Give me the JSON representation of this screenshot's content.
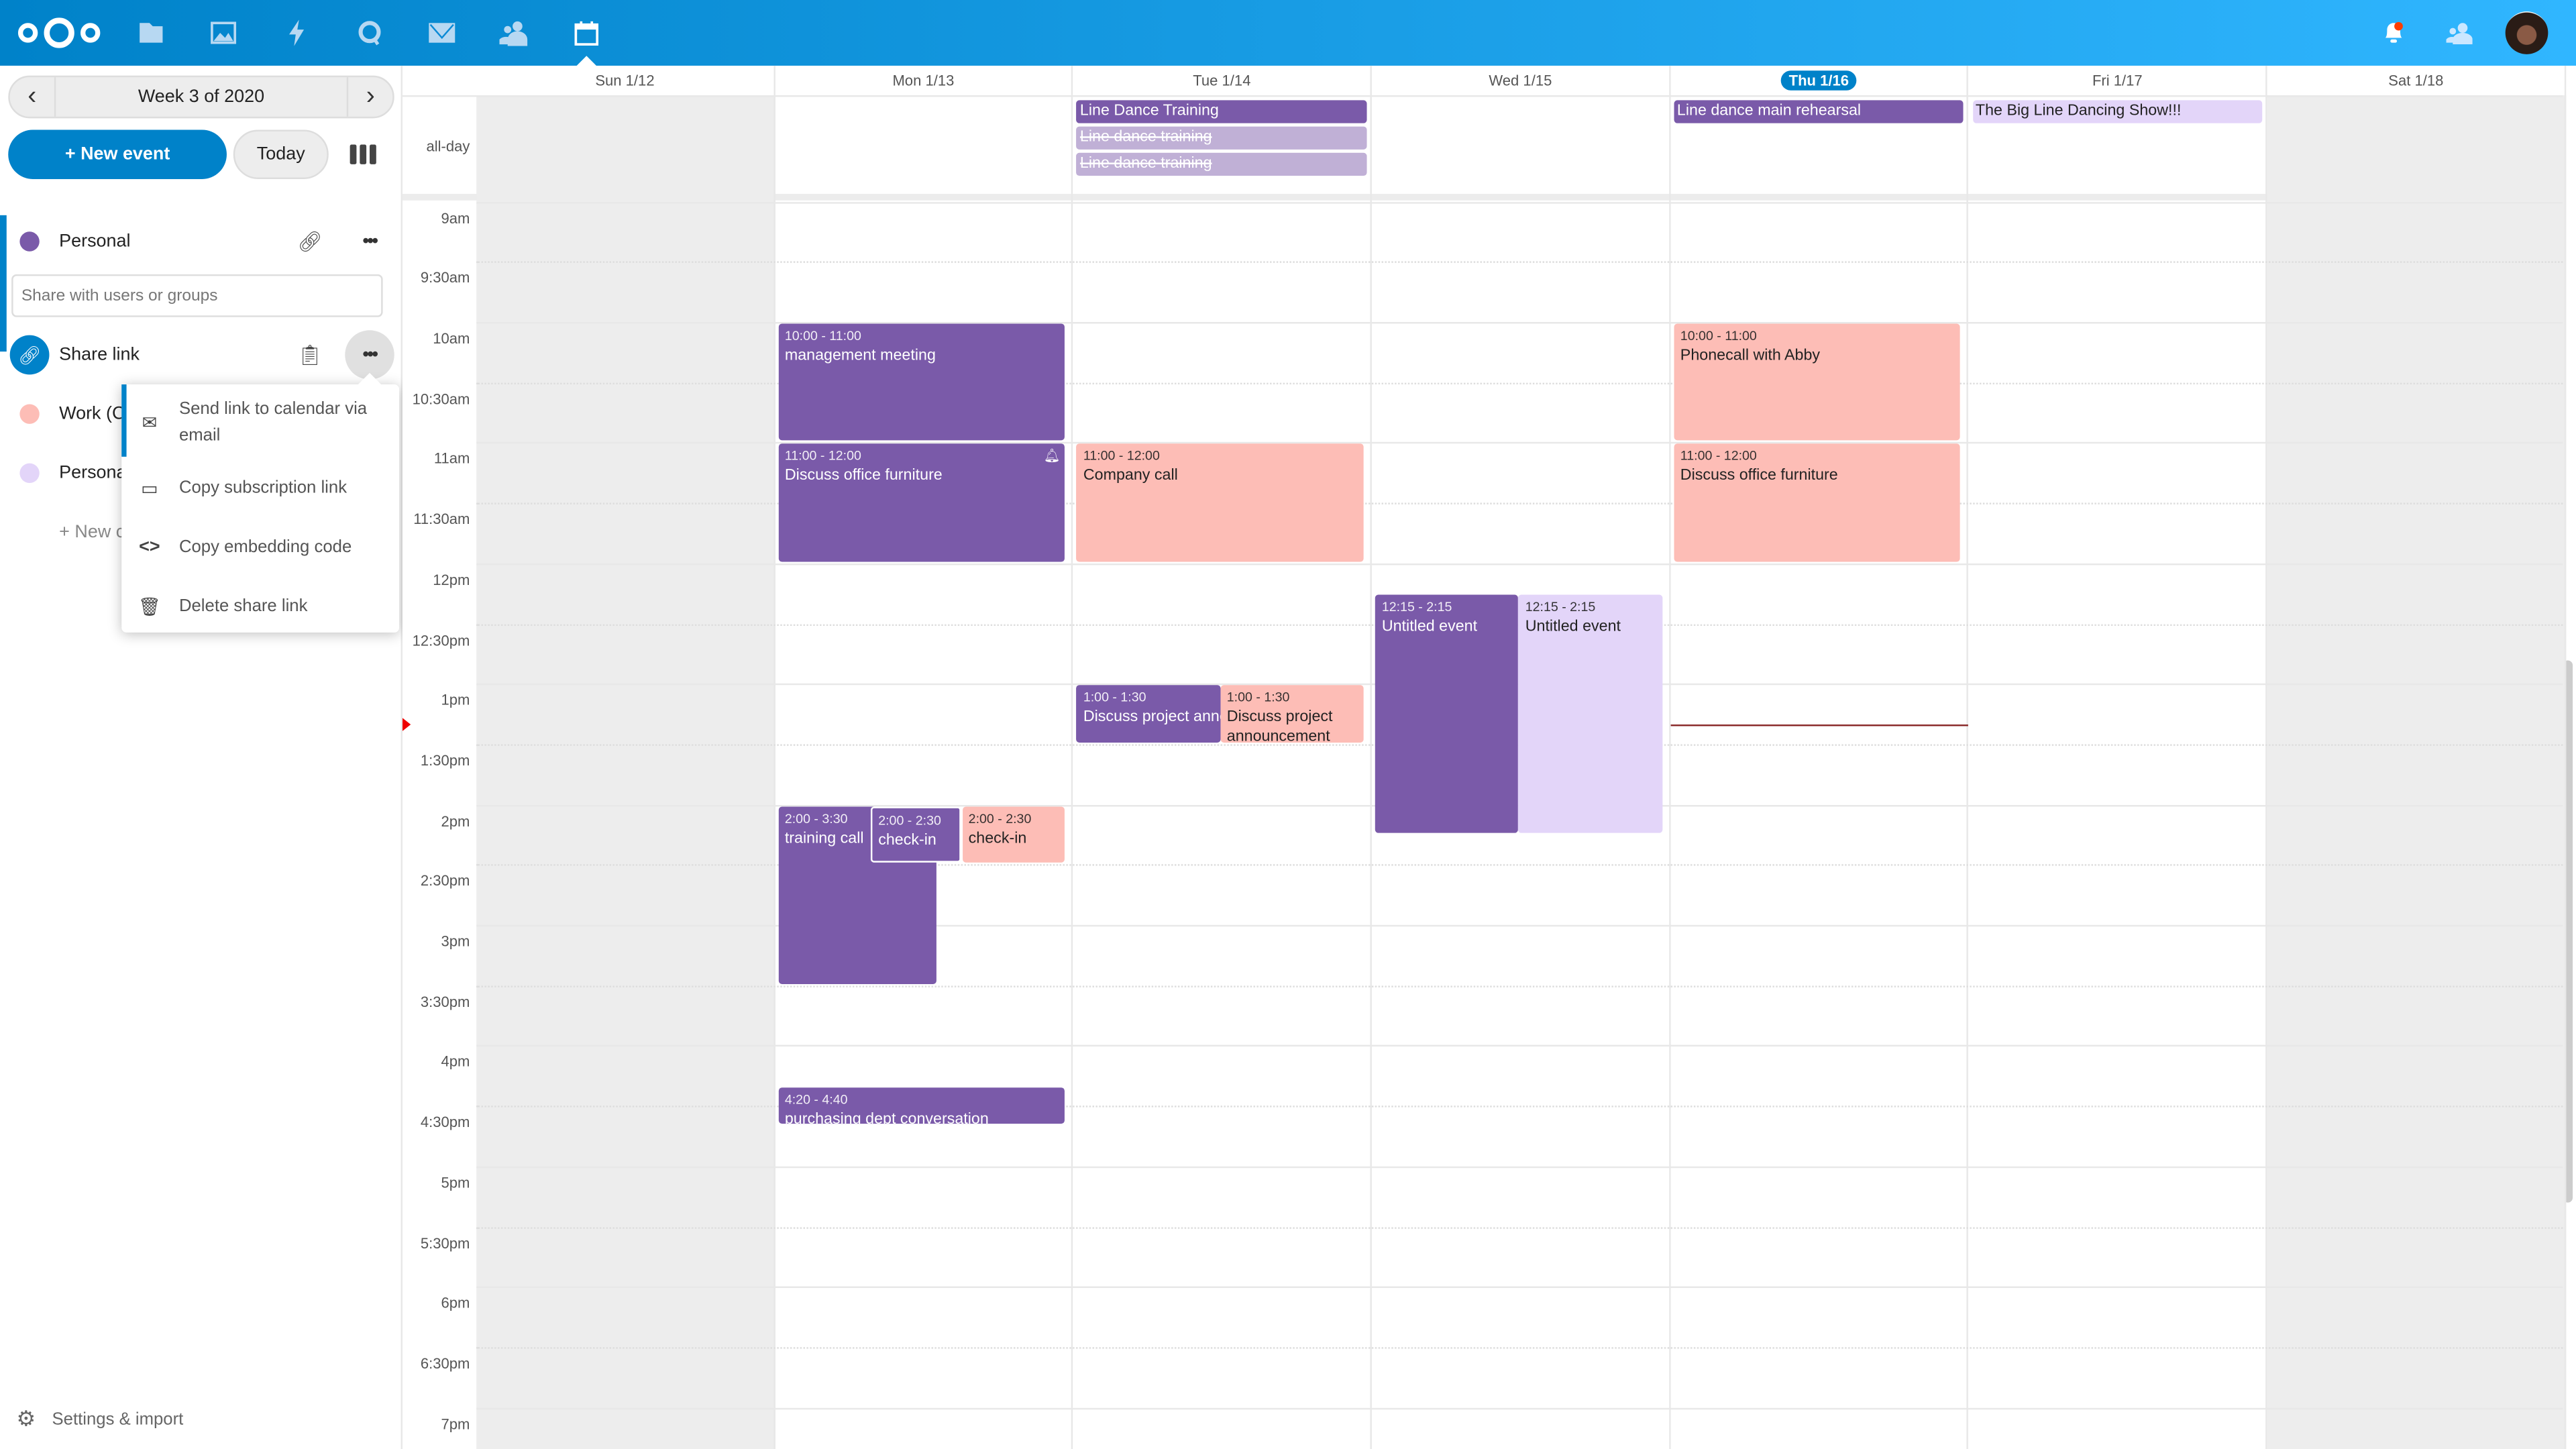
{
  "header": {
    "apps": [
      {
        "name": "files",
        "icon": "folder-icon"
      },
      {
        "name": "photos",
        "icon": "image-icon"
      },
      {
        "name": "activity",
        "icon": "lightning-icon"
      },
      {
        "name": "talk",
        "icon": "talk-icon"
      },
      {
        "name": "mail",
        "icon": "mail-icon"
      },
      {
        "name": "contacts",
        "icon": "contacts-icon"
      },
      {
        "name": "calendar",
        "icon": "calendar-icon",
        "active": true
      }
    ],
    "right_icons": [
      "bell-icon",
      "contacts-menu-icon",
      "avatar"
    ],
    "notification_dot_color": "#ff3c00",
    "brand_color": "#0082c9"
  },
  "sidebar": {
    "week_label": "Week 3 of 2020",
    "new_event": "+ New event",
    "today": "Today",
    "calendars": [
      {
        "name": "Personal",
        "color": "#7a5aa9"
      },
      {
        "name": "Work (C",
        "color": "#fdbdb6"
      },
      {
        "name": "Persona",
        "color": "#e3d5f9"
      }
    ],
    "share_placeholder": "Share with users or groups",
    "share_link_label": "Share link",
    "new_calendar": "+ New c",
    "menu": [
      {
        "label": "Send link to calendar via email",
        "icon": "mail-icon"
      },
      {
        "label": "Copy subscription link",
        "icon": "calendar-icon"
      },
      {
        "label": "Copy embedding code",
        "icon": "code-icon"
      },
      {
        "label": "Delete share link",
        "icon": "trash-icon"
      }
    ],
    "settings": "Settings & import"
  },
  "calendar": {
    "days": [
      "Sun 1/12",
      "Mon 1/13",
      "Tue 1/14",
      "Wed 1/15",
      "Thu 1/16",
      "Fri 1/17",
      "Sat 1/18"
    ],
    "today_index": 4,
    "allday_label": "all-day",
    "time_labels": [
      "9am",
      "9:30am",
      "10am",
      "10:30am",
      "11am",
      "11:30am",
      "12pm",
      "12:30pm",
      "1pm",
      "1:30pm",
      "2pm",
      "2:30pm",
      "3pm",
      "3:30pm",
      "4pm",
      "4:30pm",
      "5pm",
      "5:30pm",
      "6pm",
      "6:30pm",
      "7pm"
    ],
    "current_time": "13:20",
    "colors": {
      "purple": "#7a5aa9",
      "pink": "#fdbdb6",
      "lavender": "#e3d5f9",
      "cancelled": "#c0b0d6"
    },
    "allday_events": [
      {
        "day": 2,
        "title": "Line Dance Training",
        "color": "purple"
      },
      {
        "day": 2,
        "title": "Line dance training",
        "color": "cancelled",
        "cancelled": true
      },
      {
        "day": 2,
        "title": "Line dance training",
        "color": "cancelled",
        "cancelled": true
      },
      {
        "day": 4,
        "title": "Line dance main rehearsal",
        "color": "purple"
      },
      {
        "day": 5,
        "title": "The Big Line Dancing Show!!!",
        "color": "lavender"
      }
    ],
    "events": [
      {
        "day": 1,
        "start": "10:00",
        "end": "11:00",
        "time": "10:00 - 11:00",
        "title": "management meeting",
        "color": "purple"
      },
      {
        "day": 1,
        "start": "11:00",
        "end": "12:00",
        "time": "11:00 - 12:00",
        "title": "Discuss office furniture",
        "color": "purple",
        "alarm": true
      },
      {
        "day": 1,
        "start": "14:00",
        "end": "15:30",
        "time": "2:00 - 3:30",
        "title": "training call",
        "color": "purple"
      },
      {
        "day": 1,
        "start": "14:00",
        "end": "14:30",
        "time": "2:00 - 2:30",
        "title": "check-in",
        "color": "purple"
      },
      {
        "day": 1,
        "start": "14:00",
        "end": "14:30",
        "time": "2:00 - 2:30",
        "title": "check-in",
        "color": "pink"
      },
      {
        "day": 1,
        "start": "16:20",
        "end": "16:40",
        "time": "4:20 - 4:40",
        "title": "purchasing dept conversation",
        "color": "purple"
      },
      {
        "day": 2,
        "start": "11:00",
        "end": "12:00",
        "time": "11:00 - 12:00",
        "title": "Company call",
        "color": "pink"
      },
      {
        "day": 2,
        "start": "13:00",
        "end": "13:30",
        "time": "1:00 - 1:30",
        "title": "Discuss project announcement",
        "color": "purple"
      },
      {
        "day": 2,
        "start": "13:00",
        "end": "13:30",
        "time": "1:00 - 1:30",
        "title": "Discuss project announcement",
        "color": "pink"
      },
      {
        "day": 3,
        "start": "12:15",
        "end": "14:15",
        "time": "12:15 - 2:15",
        "title": "Untitled event",
        "color": "purple"
      },
      {
        "day": 3,
        "start": "12:15",
        "end": "14:15",
        "time": "12:15 - 2:15",
        "title": "Untitled event",
        "color": "lavender"
      },
      {
        "day": 4,
        "start": "10:00",
        "end": "11:00",
        "time": "10:00 - 11:00",
        "title": "Phonecall with Abby",
        "color": "pink"
      },
      {
        "day": 4,
        "start": "11:00",
        "end": "12:00",
        "time": "11:00 - 12:00",
        "title": "Discuss office furniture",
        "color": "pink"
      }
    ]
  }
}
